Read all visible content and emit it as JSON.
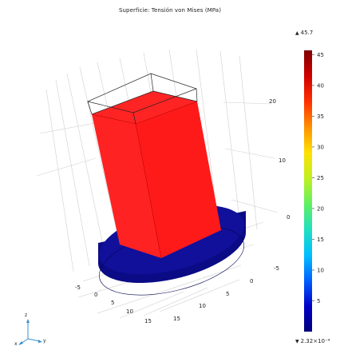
{
  "title": "Superficie: Tensión von Mises (MPa)",
  "chart_data": {
    "type": "3d-surface",
    "title": "Superficie: Tensión von Mises (MPa)",
    "quantity": "Tensión von Mises",
    "unit": "MPa",
    "colorbar": {
      "max_label": "45.7",
      "min_label": "2.32×10⁻⁴",
      "max_value": 45.7,
      "min_value": 0.000232,
      "ticks": [
        45,
        40,
        35,
        30,
        25,
        20,
        15,
        10,
        5
      ],
      "ticks_text": [
        "45",
        "40",
        "35",
        "30",
        "25",
        "20",
        "15",
        "10",
        "5"
      ],
      "colormap": "rainbow",
      "colors": [
        "#00007a",
        "#0000c8",
        "#0060ff",
        "#00c0ff",
        "#20e0c0",
        "#60f060",
        "#c0f020",
        "#ffe000",
        "#ff9000",
        "#ff3000",
        "#d00000",
        "#800000"
      ]
    },
    "z_ticks": [
      "20",
      "10",
      "0"
    ],
    "y_ticks": [
      "-5",
      "0",
      "5",
      "10",
      "15"
    ],
    "x_ticks": [
      "-5",
      "0",
      "5",
      "10",
      "15"
    ],
    "axis_names": [
      "z",
      "y",
      "x"
    ],
    "regions": [
      {
        "part": "rectangular post",
        "color": "#ff2020"
      },
      {
        "part": "cylindrical base",
        "color": "#0d0d8c"
      }
    ]
  }
}
